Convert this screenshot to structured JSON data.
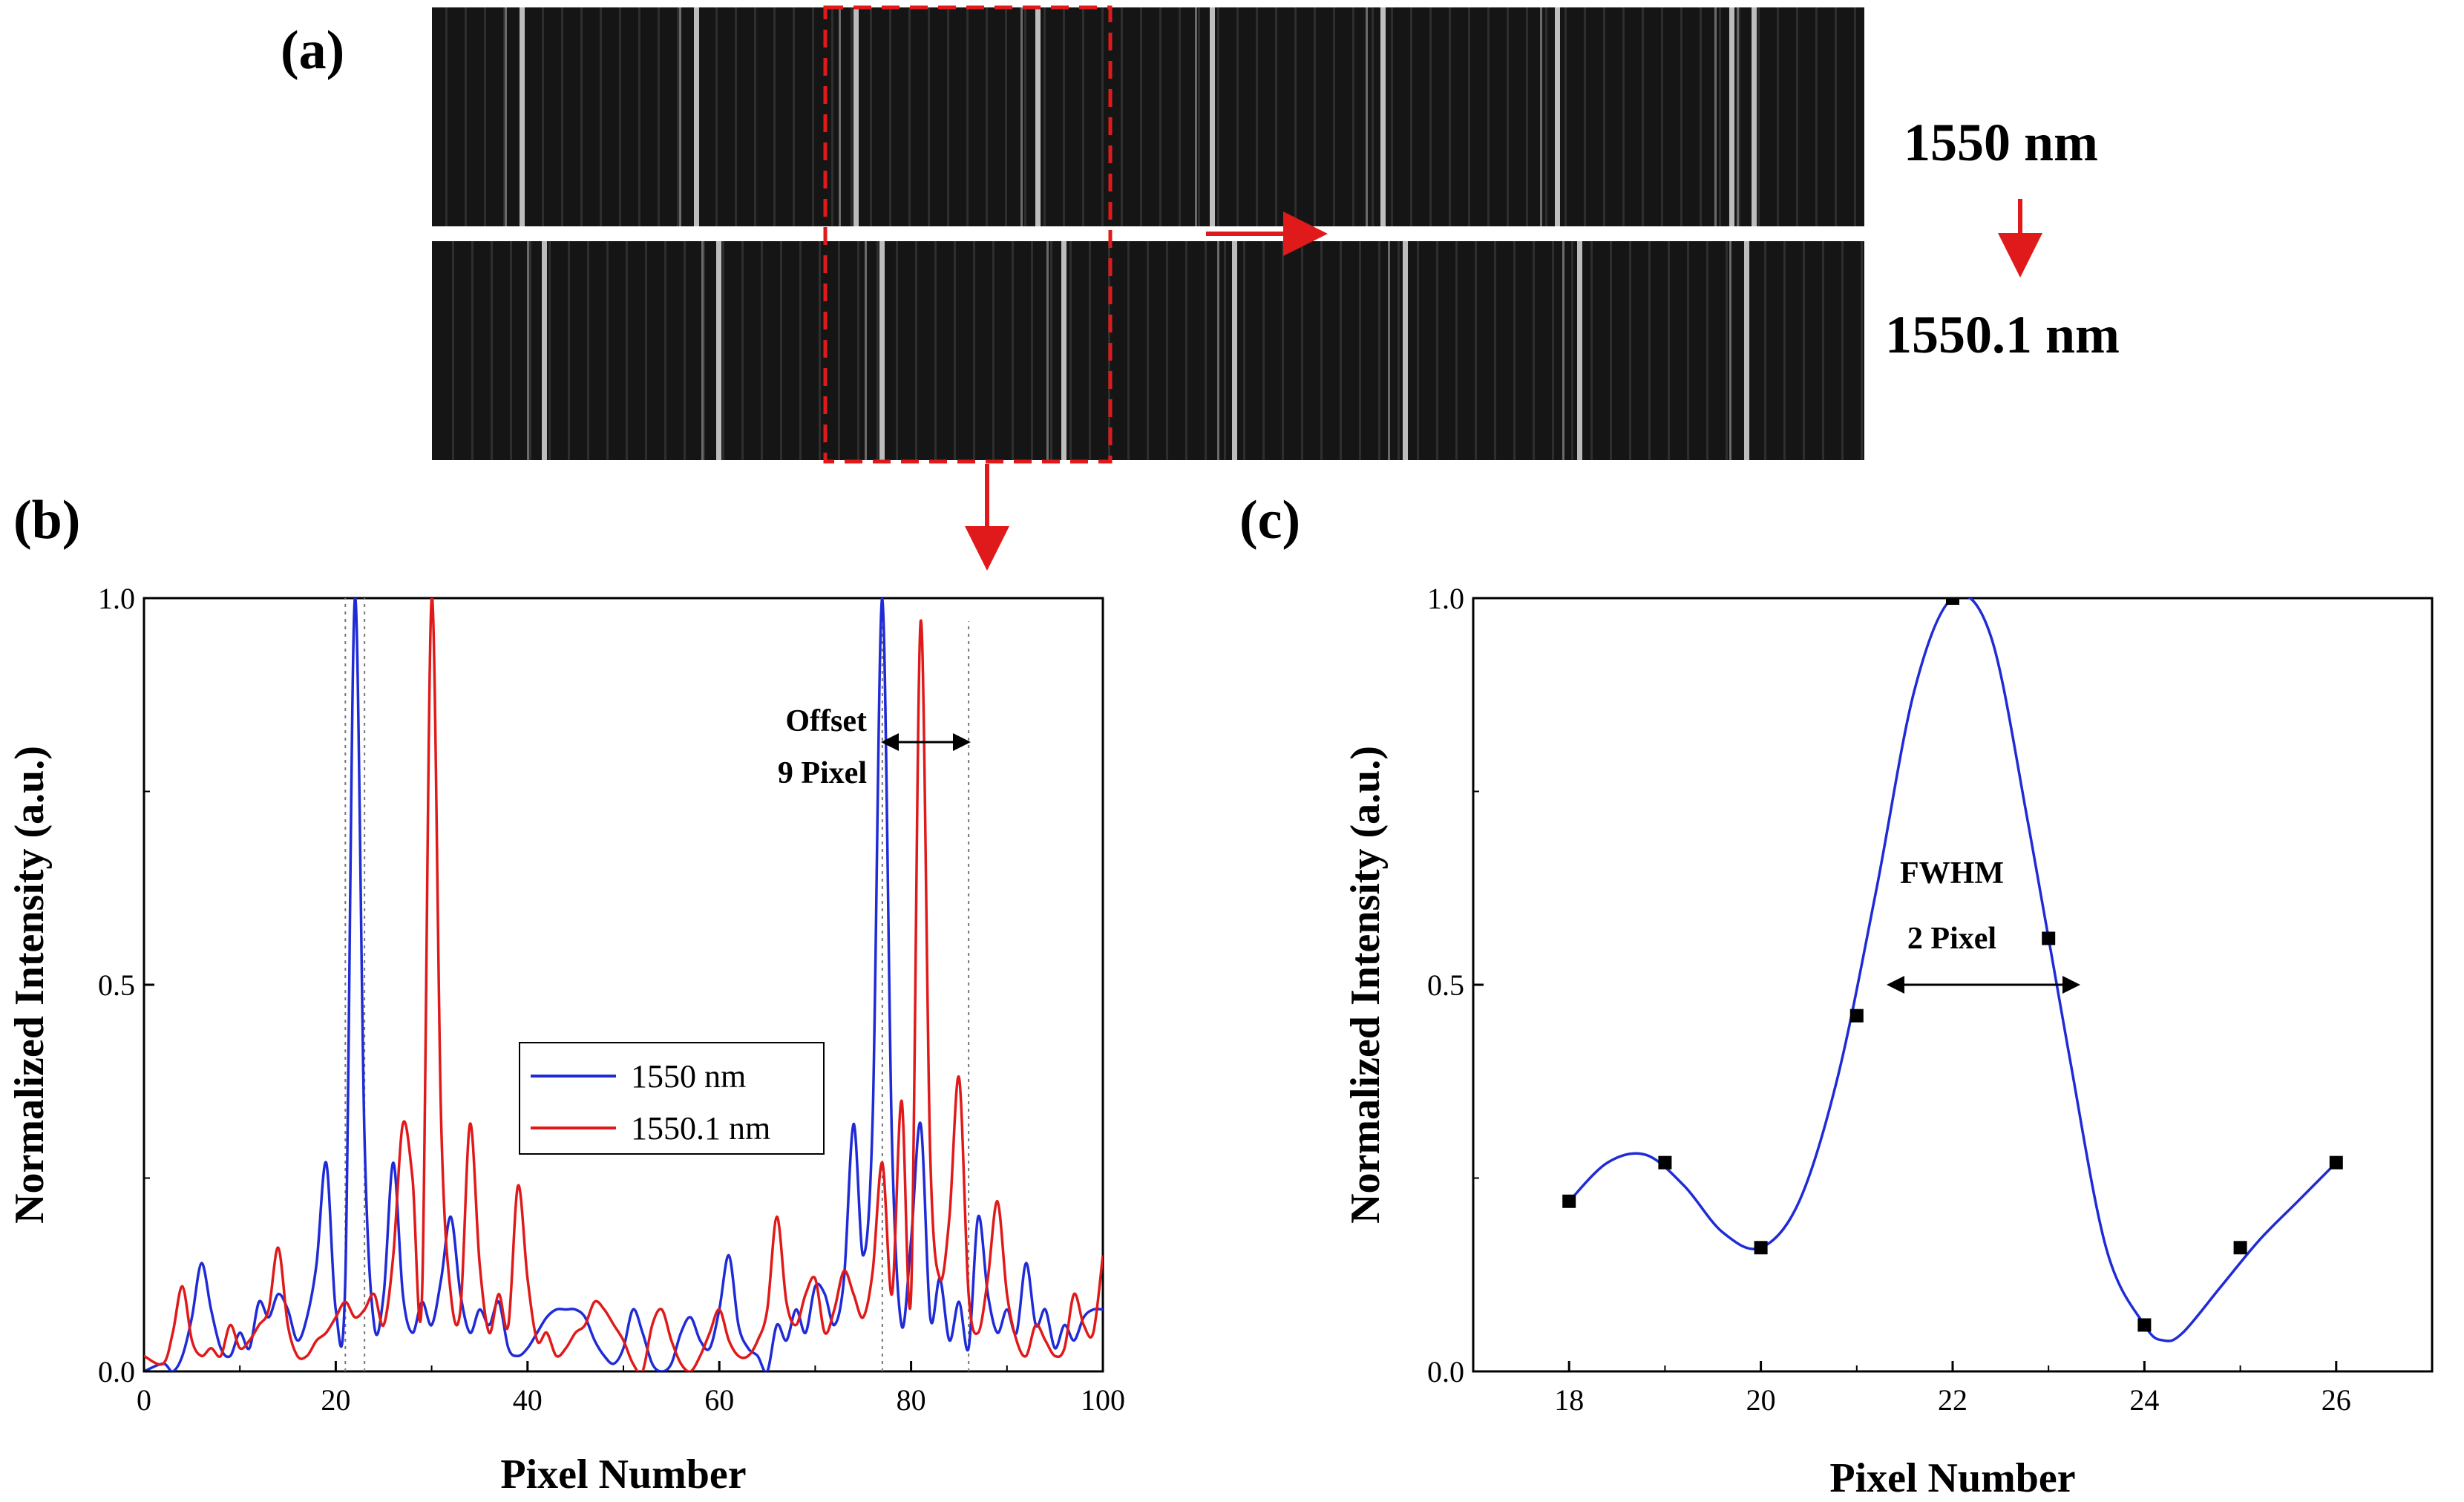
{
  "panels": {
    "a": "(a)",
    "b": "(b)",
    "c": "(c)"
  },
  "images": {
    "top_label": "1550 nm",
    "bottom_label": "1550.1 nm"
  },
  "chart_data": [
    {
      "id": "b",
      "type": "line",
      "xlabel": "Pixel Number",
      "ylabel": "Normalized Intensity (a.u.)",
      "xlim": [
        0,
        100
      ],
      "ylim": [
        0,
        1
      ],
      "xticks": [
        "0",
        "20",
        "40",
        "60",
        "80",
        "100"
      ],
      "yticks": [
        "0.0",
        "0.5",
        "1.0"
      ],
      "legend": "center",
      "annotation": [
        "Offset",
        "9 Pixel"
      ],
      "series": [
        {
          "name": "1550 nm",
          "color": "#1f2bd6",
          "x": [
            0,
            2,
            3,
            4,
            5,
            6,
            7,
            8,
            9,
            10,
            11,
            12,
            13,
            14,
            15,
            16,
            17,
            18,
            19,
            20,
            21,
            22,
            23,
            24,
            25,
            26,
            27,
            28,
            29,
            30,
            31,
            32,
            33,
            34,
            35,
            36,
            37,
            38,
            39,
            40,
            41,
            42,
            43,
            44,
            45,
            46,
            47,
            48,
            49,
            50,
            51,
            52,
            53,
            54,
            55,
            56,
            57,
            58,
            59,
            60,
            61,
            62,
            63,
            64,
            65,
            66,
            67,
            68,
            69,
            70,
            71,
            72,
            73,
            74,
            75,
            76,
            77,
            78,
            79,
            80,
            81,
            82,
            83,
            84,
            85,
            86,
            87,
            88,
            89,
            90,
            91,
            92,
            93,
            94,
            95,
            96,
            97,
            98,
            99,
            100
          ],
          "y": [
            0.0,
            0.01,
            0.0,
            0.02,
            0.07,
            0.14,
            0.08,
            0.03,
            0.02,
            0.05,
            0.03,
            0.09,
            0.07,
            0.1,
            0.08,
            0.04,
            0.07,
            0.14,
            0.27,
            0.08,
            0.12,
            1.0,
            0.3,
            0.06,
            0.1,
            0.27,
            0.1,
            0.05,
            0.09,
            0.06,
            0.12,
            0.2,
            0.1,
            0.05,
            0.08,
            0.06,
            0.09,
            0.03,
            0.02,
            0.03,
            0.05,
            0.07,
            0.08,
            0.08,
            0.08,
            0.07,
            0.04,
            0.02,
            0.01,
            0.03,
            0.08,
            0.05,
            0.01,
            0.0,
            0.01,
            0.05,
            0.07,
            0.04,
            0.03,
            0.08,
            0.15,
            0.06,
            0.03,
            0.02,
            0.0,
            0.06,
            0.04,
            0.08,
            0.05,
            0.11,
            0.1,
            0.06,
            0.12,
            0.32,
            0.15,
            0.33,
            1.0,
            0.3,
            0.06,
            0.17,
            0.32,
            0.07,
            0.12,
            0.04,
            0.09,
            0.03,
            0.2,
            0.1,
            0.05,
            0.08,
            0.05,
            0.14,
            0.06,
            0.08,
            0.03,
            0.06,
            0.04,
            0.07,
            0.08,
            0.08
          ]
        },
        {
          "name": "1550.1 nm",
          "color": "#e01a1a",
          "x": [
            0,
            2,
            3,
            4,
            5,
            6,
            7,
            8,
            9,
            10,
            11,
            12,
            13,
            14,
            15,
            16,
            17,
            18,
            19,
            20,
            21,
            22,
            23,
            24,
            25,
            26,
            27,
            28,
            29,
            30,
            31,
            32,
            33,
            34,
            35,
            36,
            37,
            38,
            39,
            40,
            41,
            42,
            43,
            44,
            45,
            46,
            47,
            48,
            49,
            50,
            51,
            52,
            53,
            54,
            55,
            56,
            57,
            58,
            59,
            60,
            61,
            62,
            63,
            64,
            65,
            66,
            67,
            68,
            69,
            70,
            71,
            72,
            73,
            74,
            75,
            76,
            77,
            78,
            79,
            80,
            81,
            82,
            83,
            84,
            85,
            86,
            87,
            88,
            89,
            90,
            91,
            92,
            93,
            94,
            95,
            96,
            97,
            98,
            99,
            100
          ],
          "y": [
            0.02,
            0.01,
            0.05,
            0.11,
            0.04,
            0.02,
            0.03,
            0.02,
            0.06,
            0.03,
            0.04,
            0.06,
            0.08,
            0.16,
            0.06,
            0.02,
            0.02,
            0.04,
            0.05,
            0.07,
            0.09,
            0.07,
            0.08,
            0.1,
            0.06,
            0.15,
            0.32,
            0.25,
            0.1,
            1.0,
            0.32,
            0.1,
            0.08,
            0.32,
            0.14,
            0.05,
            0.1,
            0.06,
            0.24,
            0.12,
            0.04,
            0.05,
            0.02,
            0.03,
            0.05,
            0.06,
            0.09,
            0.08,
            0.06,
            0.04,
            0.01,
            0.0,
            0.06,
            0.08,
            0.04,
            0.01,
            0.0,
            0.02,
            0.05,
            0.08,
            0.04,
            0.02,
            0.02,
            0.04,
            0.08,
            0.2,
            0.09,
            0.06,
            0.1,
            0.12,
            0.05,
            0.08,
            0.13,
            0.1,
            0.07,
            0.13,
            0.27,
            0.1,
            0.35,
            0.1,
            0.97,
            0.28,
            0.12,
            0.2,
            0.38,
            0.1,
            0.05,
            0.12,
            0.22,
            0.1,
            0.04,
            0.02,
            0.06,
            0.04,
            0.02,
            0.03,
            0.1,
            0.06,
            0.05,
            0.15
          ]
        }
      ]
    },
    {
      "id": "c",
      "type": "line",
      "xlabel": "Pixel Number",
      "ylabel": "Normalized Intensity (a.u.)",
      "xlim": [
        17,
        27
      ],
      "ylim": [
        0,
        1
      ],
      "xticks": [
        "18",
        "20",
        "22",
        "24",
        "26"
      ],
      "yticks": [
        "0.0",
        "0.5",
        "1.0"
      ],
      "annotation": [
        "FWHM",
        "2 Pixel"
      ],
      "points": {
        "x": [
          18,
          19,
          20,
          21,
          22,
          23,
          24,
          25,
          26
        ],
        "y": [
          0.22,
          0.27,
          0.16,
          0.46,
          1.0,
          0.56,
          0.06,
          0.16,
          0.27
        ]
      },
      "curve": {
        "color": "#1f2bd6",
        "x": [
          18.0,
          18.4,
          18.8,
          19.2,
          19.6,
          20.0,
          20.4,
          20.8,
          21.2,
          21.6,
          22.0,
          22.4,
          22.8,
          23.2,
          23.6,
          24.0,
          24.2,
          24.4,
          24.8,
          25.2,
          25.6,
          26.0
        ],
        "y": [
          0.22,
          0.27,
          0.28,
          0.24,
          0.18,
          0.16,
          0.22,
          0.38,
          0.62,
          0.88,
          1.0,
          0.95,
          0.7,
          0.42,
          0.16,
          0.06,
          0.04,
          0.05,
          0.11,
          0.17,
          0.22,
          0.27
        ]
      }
    }
  ]
}
